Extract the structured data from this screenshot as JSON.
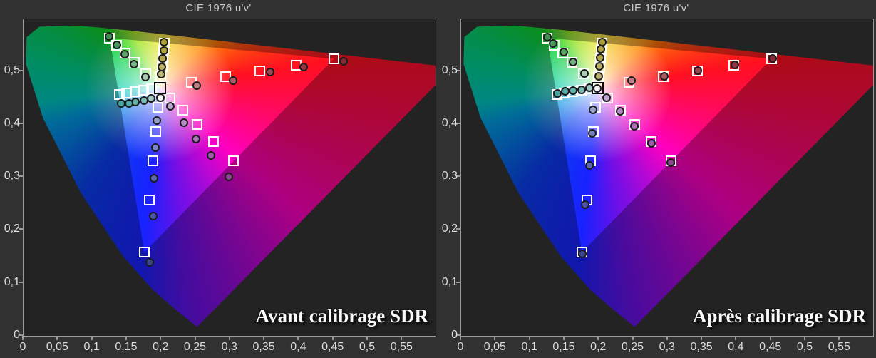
{
  "page": {
    "background": "#313131",
    "accent_border": "#9a9a9a"
  },
  "panels": [
    {
      "title": "CIE 1976 u'v'",
      "caption": "Avant calibrage SDR"
    },
    {
      "title": "CIE 1976 u'v'",
      "caption": "Après calibrage SDR"
    }
  ],
  "axes": {
    "x_ticks": [
      {
        "value": 0,
        "label": "0"
      },
      {
        "value": 0.05,
        "label": "0,05"
      },
      {
        "value": 0.1,
        "label": "0,1"
      },
      {
        "value": 0.15,
        "label": "0,15"
      },
      {
        "value": 0.2,
        "label": "0,2"
      },
      {
        "value": 0.25,
        "label": "0,25"
      },
      {
        "value": 0.3,
        "label": "0,3"
      },
      {
        "value": 0.35,
        "label": "0,35"
      },
      {
        "value": 0.4,
        "label": "0,4"
      },
      {
        "value": 0.45,
        "label": "0,45"
      },
      {
        "value": 0.5,
        "label": "0,5"
      },
      {
        "value": 0.55,
        "label": "0,55"
      }
    ],
    "y_ticks": [
      {
        "value": 0,
        "label": "0"
      },
      {
        "value": 0.1,
        "label": "0,1"
      },
      {
        "value": 0.2,
        "label": "0,2"
      },
      {
        "value": 0.3,
        "label": "0,3"
      },
      {
        "value": 0.4,
        "label": "0,4"
      },
      {
        "value": 0.5,
        "label": "0,5"
      }
    ]
  },
  "chart_data": [
    {
      "type": "scatter",
      "title": "CIE 1976 u'v'",
      "annotation": "Avant calibrage SDR",
      "description": "CIE 1976 u'v' chromaticity diagram, Rec.709 saturation sweeps: squares = targets, circles = measurements before calibration",
      "x_range": [
        0,
        0.6
      ],
      "y_range": [
        0,
        0.6
      ],
      "white_point": {
        "target": [
          0.198,
          0.468
        ],
        "measured": [
          0.199,
          0.449
        ],
        "fill": "#f4f4f4"
      },
      "gamut_rec709": {
        "red": [
          0.451,
          0.523
        ],
        "green": [
          0.125,
          0.5625
        ],
        "blue": [
          0.175,
          0.158
        ],
        "cyan": [
          0.139,
          0.456
        ],
        "magenta": [
          0.305,
          0.33
        ],
        "yellow": [
          0.204,
          0.553
        ]
      },
      "sweeps": [
        {
          "name": "red",
          "saturations": [
            20,
            40,
            60,
            80,
            100
          ],
          "targets": [
            [
              0.244,
              0.478
            ],
            [
              0.293,
              0.489
            ],
            [
              0.343,
              0.5
            ],
            [
              0.396,
              0.511
            ],
            [
              0.451,
              0.523
            ]
          ],
          "measured": [
            [
              0.252,
              0.472
            ],
            [
              0.304,
              0.482
            ],
            [
              0.358,
              0.498
            ],
            [
              0.407,
              0.507
            ],
            [
              0.465,
              0.518
            ]
          ],
          "fills": [
            "#bd7d82",
            "#a85a60",
            "#9a4550",
            "#8f3440",
            "#842a36"
          ]
        },
        {
          "name": "green",
          "saturations": [
            20,
            40,
            60,
            80,
            100
          ],
          "targets": [
            [
              0.178,
              0.494
            ],
            [
              0.161,
              0.516
            ],
            [
              0.147,
              0.534
            ],
            [
              0.135,
              0.549
            ],
            [
              0.125,
              0.5625
            ]
          ],
          "measured": [
            [
              0.177,
              0.489
            ],
            [
              0.16,
              0.513
            ],
            [
              0.147,
              0.531
            ],
            [
              0.136,
              0.549
            ],
            [
              0.124,
              0.565
            ]
          ],
          "fills": [
            "#a9c9af",
            "#7bb487",
            "#5ba569",
            "#4a985c",
            "#3f9052"
          ]
        },
        {
          "name": "blue",
          "saturations": [
            20,
            40,
            60,
            80,
            100
          ],
          "targets": [
            [
              0.195,
              0.431
            ],
            [
              0.192,
              0.386
            ],
            [
              0.188,
              0.33
            ],
            [
              0.183,
              0.256
            ],
            [
              0.175,
              0.158
            ]
          ],
          "measured": [
            [
              0.194,
              0.406
            ],
            [
              0.192,
              0.355
            ],
            [
              0.189,
              0.297
            ],
            [
              0.188,
              0.226
            ],
            [
              0.183,
              0.139
            ]
          ],
          "fills": [
            "#96a2cc",
            "#7583bd",
            "#5a68b0",
            "#4a55a8",
            "#3a4590"
          ]
        },
        {
          "name": "cyan",
          "saturations": [
            20,
            40,
            60,
            80,
            100
          ],
          "targets": [
            [
              0.186,
              0.466
            ],
            [
              0.174,
              0.463
            ],
            [
              0.162,
              0.461
            ],
            [
              0.15,
              0.458
            ],
            [
              0.139,
              0.456
            ]
          ],
          "measured": [
            [
              0.185,
              0.448
            ],
            [
              0.175,
              0.444
            ],
            [
              0.163,
              0.441
            ],
            [
              0.153,
              0.439
            ],
            [
              0.142,
              0.439
            ]
          ],
          "fills": [
            "#a2c8c4",
            "#7cbab6",
            "#64b2ae",
            "#54aca8",
            "#48a6a2"
          ]
        },
        {
          "name": "magenta",
          "saturations": [
            20,
            40,
            60,
            80,
            100
          ],
          "targets": [
            [
              0.213,
              0.449
            ],
            [
              0.231,
              0.426
            ],
            [
              0.252,
              0.399
            ],
            [
              0.276,
              0.367
            ],
            [
              0.305,
              0.33
            ]
          ],
          "measured": [
            [
              0.213,
              0.433
            ],
            [
              0.233,
              0.402
            ],
            [
              0.251,
              0.372
            ],
            [
              0.272,
              0.34
            ],
            [
              0.298,
              0.3
            ]
          ],
          "fills": [
            "#bca7d0",
            "#b28ac3",
            "#a870b6",
            "#9e59a6",
            "#8e4491"
          ]
        },
        {
          "name": "yellow",
          "saturations": [
            20,
            40,
            60,
            80,
            100
          ],
          "targets": [
            [
              0.199,
              0.489
            ],
            [
              0.201,
              0.508
            ],
            [
              0.202,
              0.524
            ],
            [
              0.203,
              0.539
            ],
            [
              0.204,
              0.553
            ]
          ],
          "measured": [
            [
              0.2,
              0.494
            ],
            [
              0.201,
              0.508
            ],
            [
              0.202,
              0.524
            ],
            [
              0.204,
              0.538
            ],
            [
              0.204,
              0.554
            ]
          ],
          "fills": [
            "#bdb375",
            "#b8ac60",
            "#b3a54e",
            "#afa140",
            "#ac9d36"
          ]
        }
      ]
    },
    {
      "type": "scatter",
      "title": "CIE 1976 u'v'",
      "annotation": "Après calibrage SDR",
      "description": "CIE 1976 u'v' chromaticity diagram, Rec.709 saturation sweeps: squares = targets, circles = measurements after calibration",
      "x_range": [
        0,
        0.6
      ],
      "y_range": [
        0,
        0.6
      ],
      "white_point": {
        "target": [
          0.198,
          0.468
        ],
        "measured": [
          0.198,
          0.467
        ],
        "fill": "#f4f4f4"
      },
      "gamut_rec709": {
        "red": [
          0.451,
          0.523
        ],
        "green": [
          0.125,
          0.5625
        ],
        "blue": [
          0.175,
          0.158
        ],
        "cyan": [
          0.139,
          0.456
        ],
        "magenta": [
          0.305,
          0.33
        ],
        "yellow": [
          0.204,
          0.553
        ]
      },
      "sweeps": [
        {
          "name": "red",
          "saturations": [
            20,
            40,
            60,
            80,
            100
          ],
          "targets": [
            [
              0.244,
              0.478
            ],
            [
              0.293,
              0.489
            ],
            [
              0.343,
              0.5
            ],
            [
              0.396,
              0.511
            ],
            [
              0.451,
              0.523
            ]
          ],
          "measured": [
            [
              0.247,
              0.482
            ],
            [
              0.295,
              0.49
            ],
            [
              0.344,
              0.501
            ],
            [
              0.397,
              0.512
            ],
            [
              0.452,
              0.523
            ]
          ],
          "fills": [
            "#bd7d82",
            "#a85a60",
            "#9a4550",
            "#8f3440",
            "#842a36"
          ]
        },
        {
          "name": "green",
          "saturations": [
            20,
            40,
            60,
            80,
            100
          ],
          "targets": [
            [
              0.178,
              0.494
            ],
            [
              0.161,
              0.516
            ],
            [
              0.147,
              0.534
            ],
            [
              0.135,
              0.549
            ],
            [
              0.125,
              0.5625
            ]
          ],
          "measured": [
            [
              0.179,
              0.495
            ],
            [
              0.163,
              0.517
            ],
            [
              0.149,
              0.535
            ],
            [
              0.134,
              0.552
            ],
            [
              0.125,
              0.564
            ]
          ],
          "fills": [
            "#a9c9af",
            "#7bb487",
            "#5ba569",
            "#4a985c",
            "#3f9052"
          ]
        },
        {
          "name": "blue",
          "saturations": [
            20,
            40,
            60,
            80,
            100
          ],
          "targets": [
            [
              0.195,
              0.431
            ],
            [
              0.192,
              0.386
            ],
            [
              0.188,
              0.33
            ],
            [
              0.183,
              0.256
            ],
            [
              0.175,
              0.158
            ]
          ],
          "measured": [
            [
              0.192,
              0.427
            ],
            [
              0.19,
              0.382
            ],
            [
              0.186,
              0.321
            ],
            [
              0.18,
              0.248
            ],
            [
              0.176,
              0.155
            ]
          ],
          "fills": [
            "#96a2cc",
            "#7583bd",
            "#5a68b0",
            "#4a55a8",
            "#3a4590"
          ]
        },
        {
          "name": "cyan",
          "saturations": [
            20,
            40,
            60,
            80,
            100
          ],
          "targets": [
            [
              0.186,
              0.466
            ],
            [
              0.174,
              0.463
            ],
            [
              0.162,
              0.461
            ],
            [
              0.15,
              0.458
            ],
            [
              0.139,
              0.456
            ]
          ],
          "measured": [
            [
              0.186,
              0.468
            ],
            [
              0.175,
              0.465
            ],
            [
              0.163,
              0.463
            ],
            [
              0.151,
              0.461
            ],
            [
              0.14,
              0.458
            ]
          ],
          "fills": [
            "#a2c8c4",
            "#7cbab6",
            "#64b2ae",
            "#54aca8",
            "#48a6a2"
          ]
        },
        {
          "name": "magenta",
          "saturations": [
            20,
            40,
            60,
            80,
            100
          ],
          "targets": [
            [
              0.213,
              0.449
            ],
            [
              0.231,
              0.426
            ],
            [
              0.252,
              0.399
            ],
            [
              0.276,
              0.367
            ],
            [
              0.305,
              0.33
            ]
          ],
          "measured": [
            [
              0.211,
              0.449
            ],
            [
              0.231,
              0.424
            ],
            [
              0.252,
              0.396
            ],
            [
              0.276,
              0.363
            ],
            [
              0.304,
              0.327
            ]
          ],
          "fills": [
            "#bca7d0",
            "#b28ac3",
            "#a870b6",
            "#9e59a6",
            "#8e4491"
          ]
        },
        {
          "name": "yellow",
          "saturations": [
            20,
            40,
            60,
            80,
            100
          ],
          "targets": [
            [
              0.199,
              0.489
            ],
            [
              0.201,
              0.508
            ],
            [
              0.202,
              0.524
            ],
            [
              0.203,
              0.539
            ],
            [
              0.204,
              0.553
            ]
          ],
          "measured": [
            [
              0.2,
              0.49
            ],
            [
              0.201,
              0.509
            ],
            [
              0.202,
              0.525
            ],
            [
              0.203,
              0.541
            ],
            [
              0.205,
              0.554
            ]
          ],
          "fills": [
            "#bdb375",
            "#b8ac60",
            "#b3a54e",
            "#afa140",
            "#ac9d36"
          ]
        }
      ]
    }
  ]
}
